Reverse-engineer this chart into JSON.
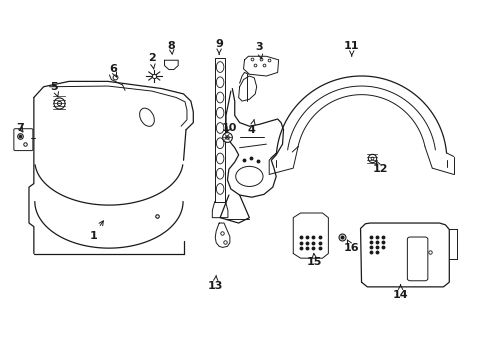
{
  "bg_color": "#ffffff",
  "fig_width": 4.89,
  "fig_height": 3.6,
  "dpi": 100,
  "line_color": "#1a1a1a",
  "label_fontsize": 8,
  "label_fontweight": "bold",
  "label_positions": {
    "1": [
      0.19,
      0.345,
      0.215,
      0.395
    ],
    "2": [
      0.31,
      0.84,
      0.315,
      0.8
    ],
    "3": [
      0.53,
      0.87,
      0.535,
      0.835
    ],
    "4": [
      0.515,
      0.64,
      0.52,
      0.67
    ],
    "5": [
      0.11,
      0.76,
      0.118,
      0.73
    ],
    "6": [
      0.23,
      0.81,
      0.238,
      0.785
    ],
    "7": [
      0.04,
      0.645,
      0.05,
      0.625
    ],
    "8": [
      0.35,
      0.875,
      0.352,
      0.848
    ],
    "9": [
      0.448,
      0.88,
      0.448,
      0.85
    ],
    "10": [
      0.468,
      0.645,
      0.462,
      0.625
    ],
    "11": [
      0.72,
      0.875,
      0.72,
      0.845
    ],
    "12": [
      0.778,
      0.53,
      0.77,
      0.555
    ],
    "13": [
      0.44,
      0.205,
      0.442,
      0.235
    ],
    "14": [
      0.82,
      0.178,
      0.82,
      0.21
    ],
    "15": [
      0.644,
      0.27,
      0.642,
      0.298
    ],
    "16": [
      0.72,
      0.31,
      0.71,
      0.335
    ]
  }
}
